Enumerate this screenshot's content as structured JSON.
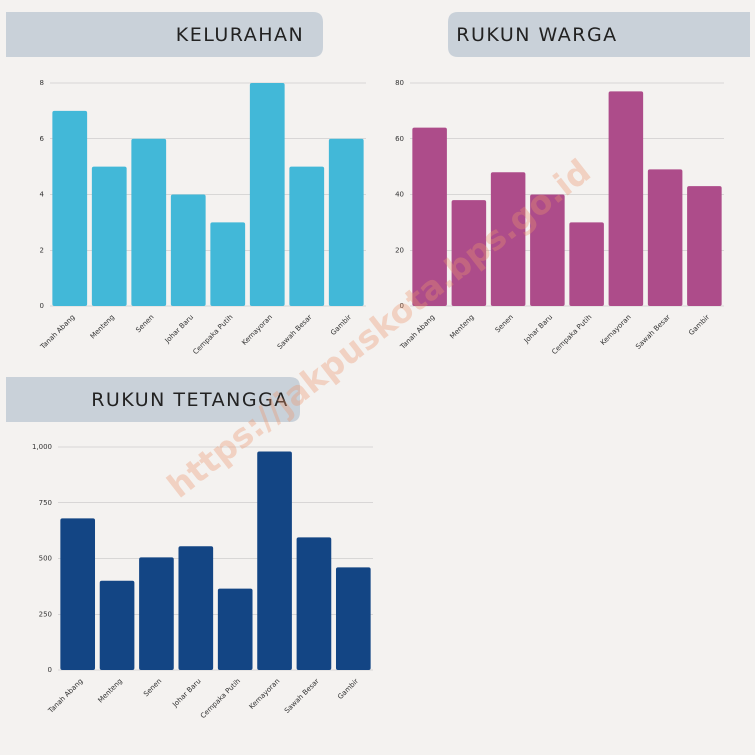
{
  "chart_data": [
    {
      "type": "bar",
      "title": "KELURAHAN",
      "categories": [
        "Tanah Abang",
        "Menteng",
        "Senen",
        "Johar Baru",
        "Cempaka Putih",
        "Kemayoran",
        "Sawah Besar",
        "Gambir"
      ],
      "values": [
        7,
        5,
        6,
        4,
        3,
        8,
        5,
        6
      ],
      "color": "#42b8d8",
      "ylim": [
        0,
        8
      ],
      "yticks": [
        0,
        2,
        4,
        6,
        8
      ],
      "grid": true
    },
    {
      "type": "bar",
      "title": "RUKUN WARGA",
      "categories": [
        "Tanah Abang",
        "Menteng",
        "Senen",
        "Johar Baru",
        "Cempaka Putih",
        "Kemayoran",
        "Sawah Besar",
        "Gambir"
      ],
      "values": [
        64,
        38,
        48,
        40,
        30,
        77,
        49,
        43
      ],
      "color": "#ad4c8a",
      "ylim": [
        0,
        80
      ],
      "yticks": [
        0,
        20,
        40,
        60,
        80
      ],
      "grid": true
    },
    {
      "type": "bar",
      "title": "RUKUN TETANGGA",
      "categories": [
        "Tanah Abang",
        "Menteng",
        "Senen",
        "Johar Baru",
        "Cempaka Putih",
        "Kemayoran",
        "Sawah Besar",
        "Gambir"
      ],
      "values": [
        680,
        400,
        505,
        555,
        365,
        980,
        595,
        460
      ],
      "color": "#134584",
      "ylim": [
        0,
        1000
      ],
      "yticks": [
        0,
        250,
        500,
        750,
        {
          "value": 1000,
          "label": "1,000"
        }
      ],
      "grid": true
    }
  ],
  "watermark": "https://jakpuskota.bps.go.id"
}
